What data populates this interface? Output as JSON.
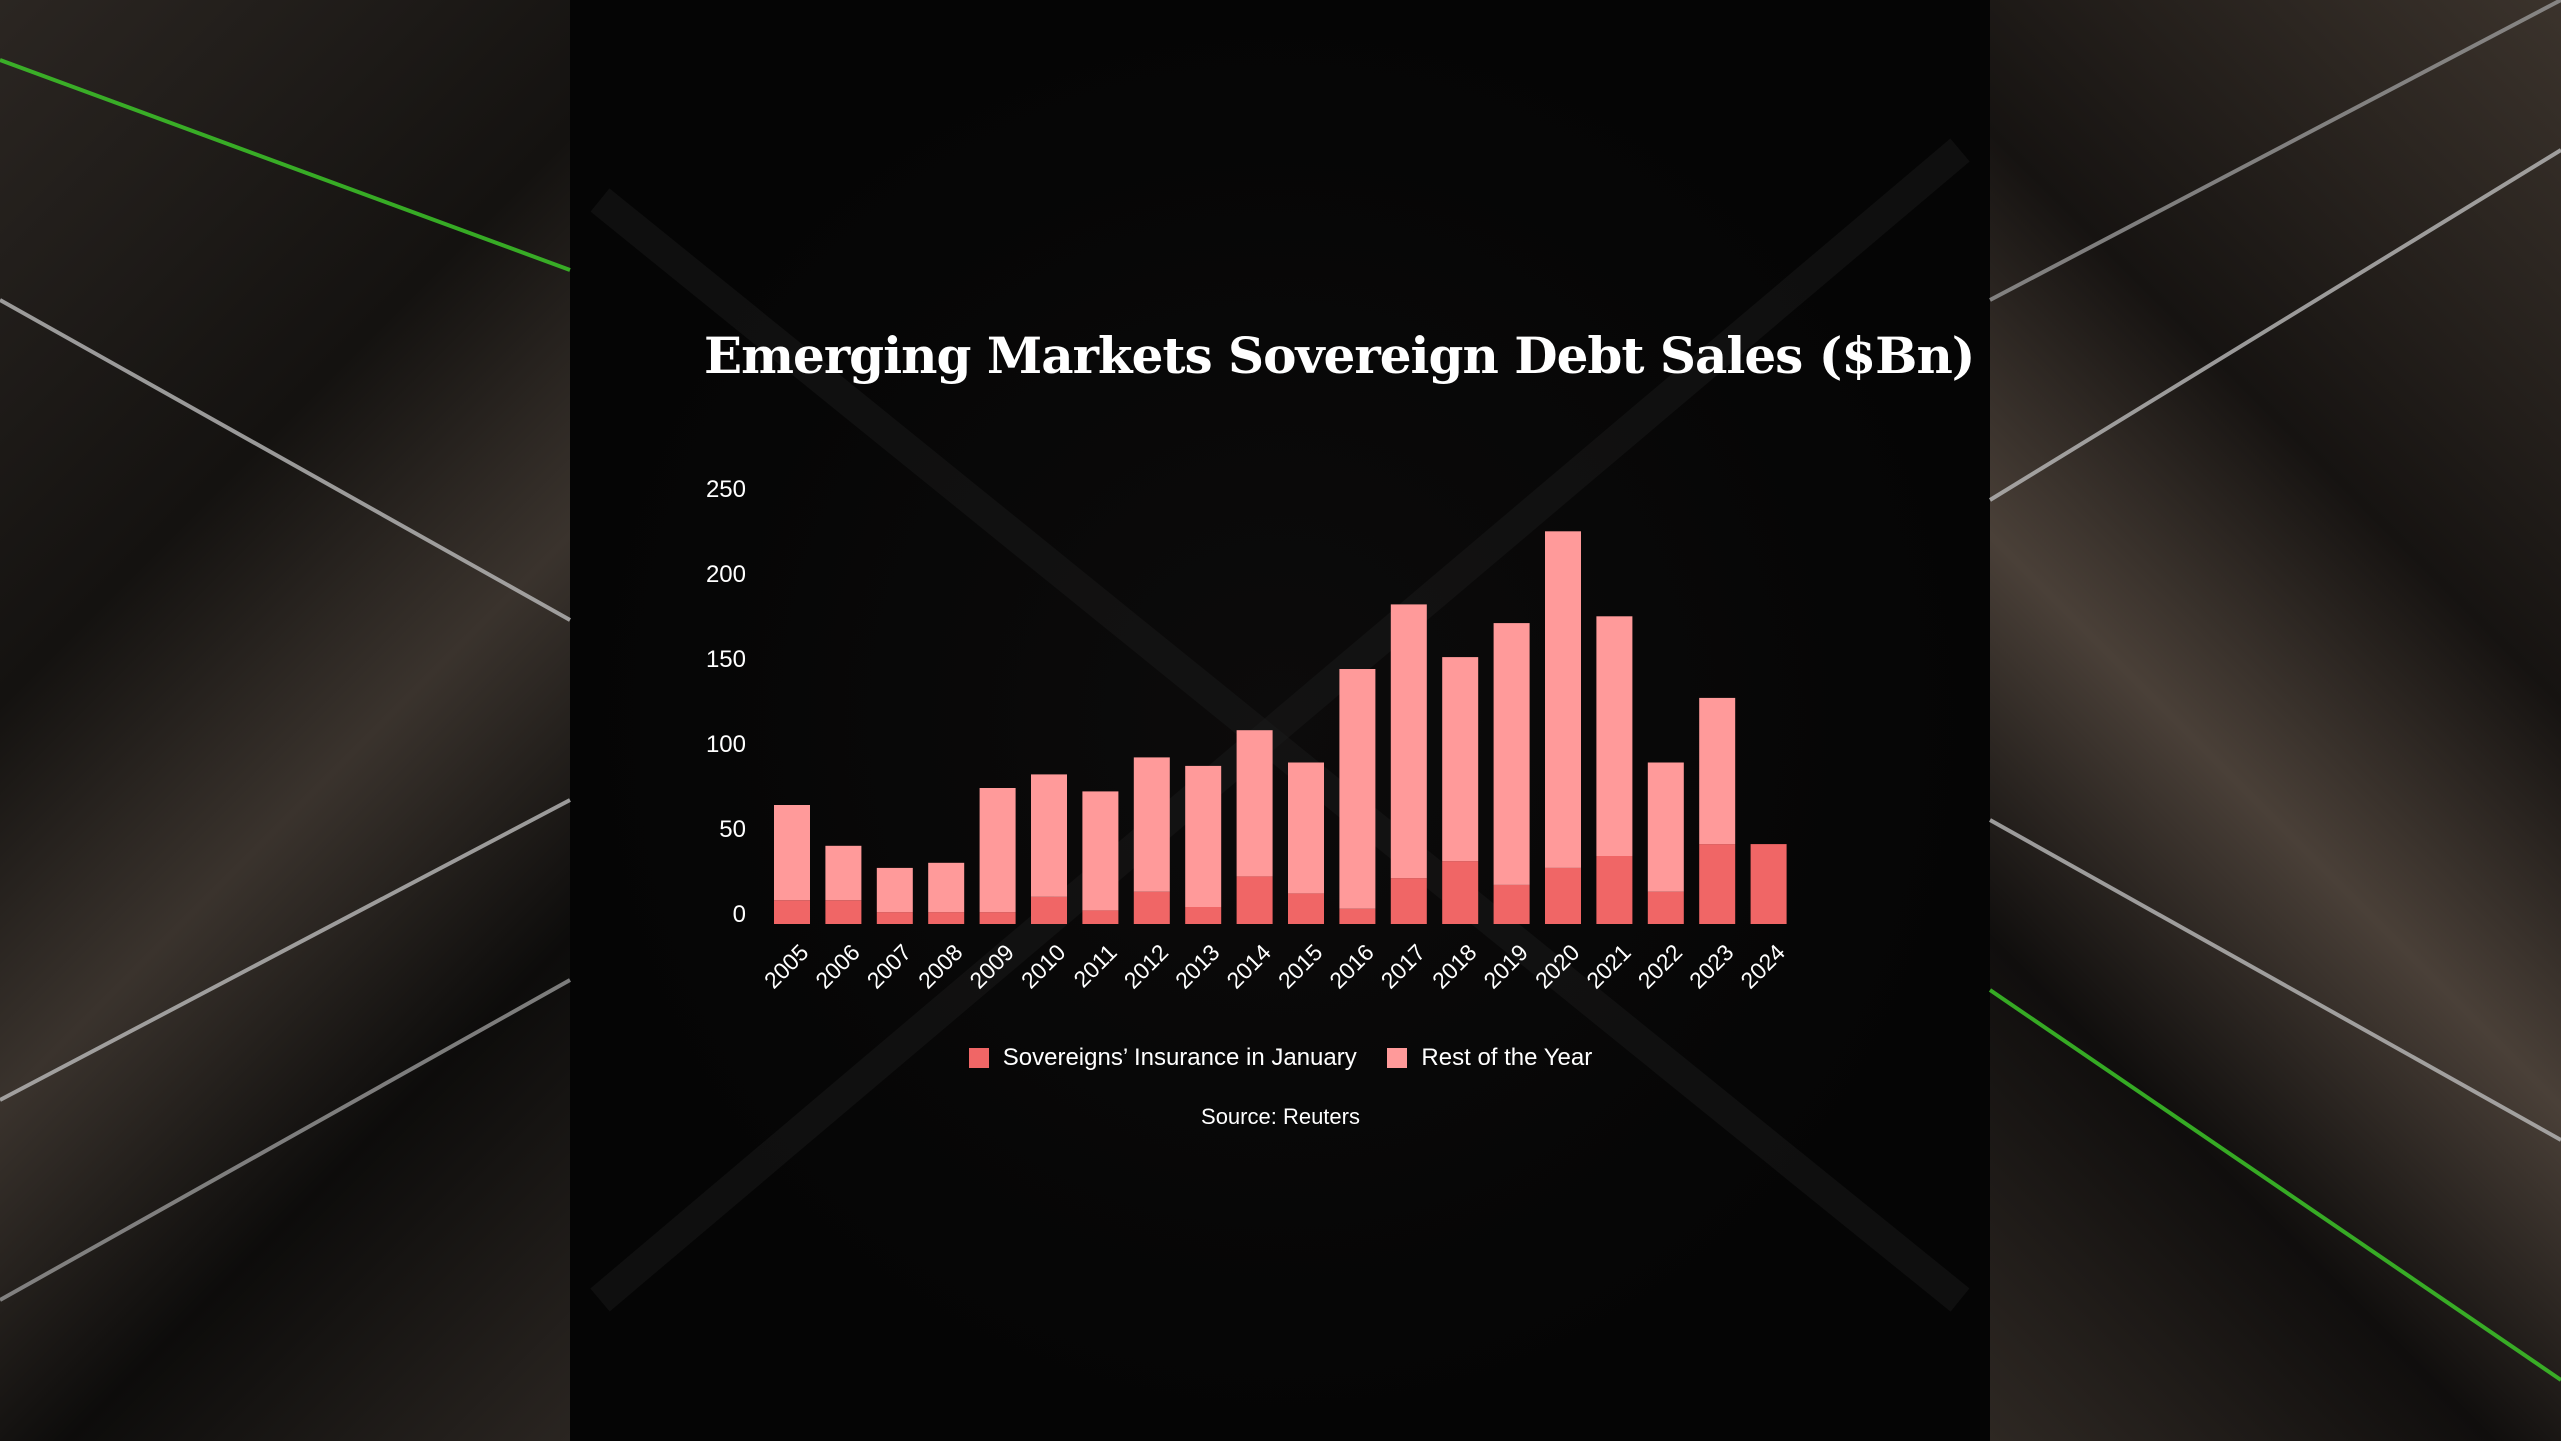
{
  "chart_data": {
    "type": "bar",
    "stacked": true,
    "title": "Emerging Markets Sovereign Debt Sales ($Bn)",
    "xlabel": "",
    "ylabel": "",
    "ylim": [
      0,
      250
    ],
    "yticks": [
      0,
      50,
      100,
      150,
      200,
      250
    ],
    "categories": [
      "2005",
      "2006",
      "2007",
      "2008",
      "2009",
      "2010",
      "2011",
      "2012",
      "2013",
      "2014",
      "2015",
      "2016",
      "2017",
      "2018",
      "2019",
      "2020",
      "2021",
      "2022",
      "2023",
      "2024"
    ],
    "series": [
      {
        "name": "Sovereigns’ Insurance in January",
        "color": "#f06666",
        "values": [
          14,
          14,
          7,
          7,
          7,
          16,
          8,
          19,
          10,
          28,
          18,
          9,
          27,
          37,
          23,
          33,
          40,
          19,
          47,
          47
        ]
      },
      {
        "name": "Rest of the Year",
        "color": "#ff9a9a",
        "values": [
          56,
          32,
          26,
          29,
          73,
          72,
          70,
          79,
          83,
          86,
          77,
          141,
          161,
          120,
          154,
          198,
          141,
          76,
          86,
          0
        ]
      }
    ],
    "legend_position": "bottom-center",
    "grid": false,
    "source": "Source: Reuters"
  }
}
